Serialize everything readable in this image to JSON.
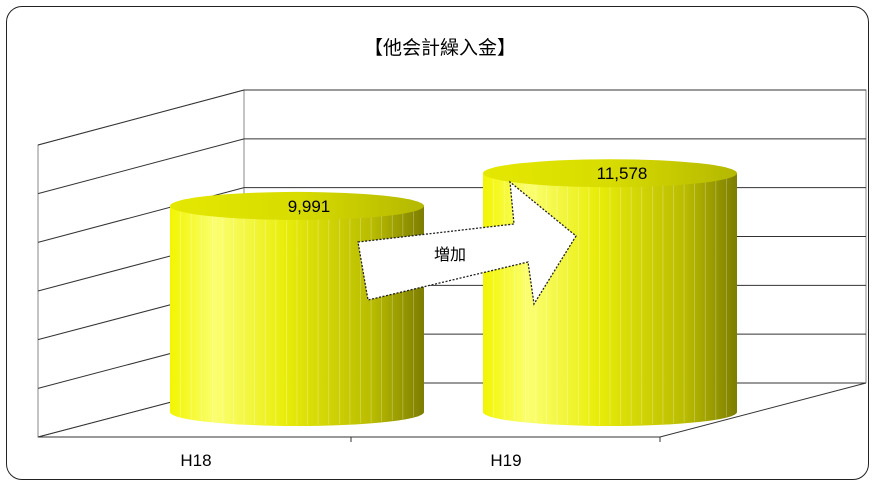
{
  "chart_data": {
    "type": "bar",
    "title": "【他会計繰入金】",
    "categories": [
      "H18",
      "H19"
    ],
    "values": [
      9991,
      11578
    ],
    "value_labels": [
      "9,991",
      "11,578"
    ],
    "ylim": [
      0,
      14000
    ],
    "grid": true,
    "legend": "none",
    "annotation": "増加",
    "colors": {
      "bar_light": "#fbff6e",
      "bar_mid": "#e6ea00",
      "bar_dark": "#8a8a00",
      "grid": "#333333"
    }
  }
}
